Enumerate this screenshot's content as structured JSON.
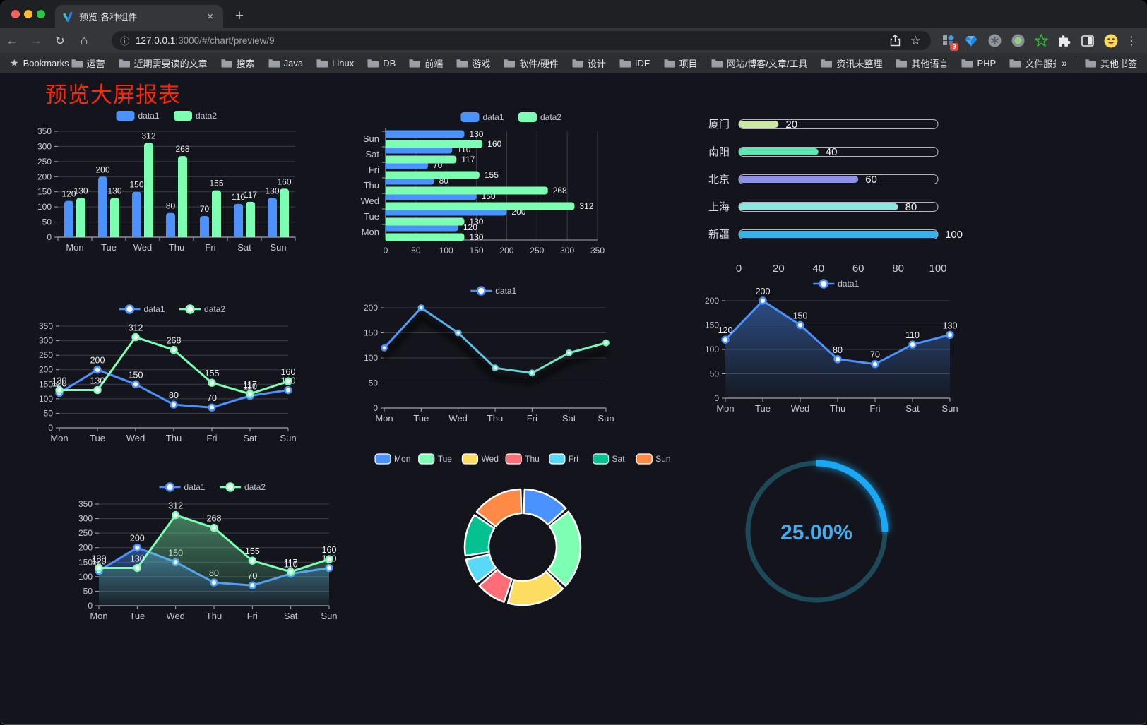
{
  "browser": {
    "tab_title": "预览-各种组件",
    "url_host": "127.0.0.1",
    "url_rest": ":3000/#/chart/preview/9",
    "bookmarks_label": "Bookmarks",
    "bookmarks": [
      "运营",
      "近期需要读的文章",
      "搜索",
      "Java",
      "Linux",
      "DB",
      "前端",
      "游戏",
      "软件/硬件",
      "设计",
      "IDE",
      "项目",
      "网站/博客/文章/工具",
      "资讯未整理",
      "其他语言",
      "PHP",
      "文件服务器"
    ],
    "overflow_chevron": "»",
    "other_bookmarks_label": "其他书签",
    "extension_badge": "9",
    "traffic_lights": [
      "#ff5f57",
      "#febc2e",
      "#28c840"
    ]
  },
  "icons": {
    "back": "←",
    "forward": "→",
    "reload": "↻",
    "home": "⌂",
    "info": "ⓘ",
    "star": "☆",
    "kebab": "⋮",
    "plus": "+",
    "close": "×"
  },
  "page": {
    "title": "预览大屏报表",
    "title_color": "#fa2a08",
    "background": "#14151c"
  },
  "theme": {
    "axis_text": "#c6c6d0",
    "grid_line": "#3c3c46",
    "axis_line": "#a6a6b4",
    "value_label": "#ecedf2",
    "legend_text": "#c3c3cd"
  },
  "chart_data": [
    {
      "type": "bar",
      "variant": "vertical",
      "legend_position": "top",
      "grid": true,
      "categories": [
        "Mon",
        "Tue",
        "Wed",
        "Thu",
        "Fri",
        "Sat",
        "Sun"
      ],
      "series": [
        {
          "name": "data1",
          "color": "#4992ff",
          "values": [
            120,
            200,
            150,
            80,
            70,
            110,
            130
          ]
        },
        {
          "name": "data2",
          "color": "#7cffb2",
          "values": [
            130,
            130,
            312,
            268,
            155,
            117,
            160
          ]
        }
      ],
      "ylim": [
        0,
        350
      ],
      "yticks": [
        0,
        50,
        100,
        150,
        200,
        250,
        300,
        350
      ],
      "value_labels": true
    },
    {
      "type": "bar",
      "variant": "horizontal",
      "legend_position": "top",
      "grid": true,
      "categories": [
        "Mon",
        "Tue",
        "Wed",
        "Thu",
        "Fri",
        "Sat",
        "Sun"
      ],
      "series": [
        {
          "name": "data1",
          "color": "#4992ff",
          "values": [
            120,
            200,
            150,
            80,
            70,
            110,
            130
          ]
        },
        {
          "name": "data2",
          "color": "#7cffb2",
          "values": [
            130,
            130,
            312,
            268,
            155,
            117,
            160
          ]
        }
      ],
      "xlim": [
        0,
        350
      ],
      "xticks": [
        0,
        50,
        100,
        150,
        200,
        250,
        300,
        350
      ],
      "value_labels": true
    },
    {
      "type": "bar",
      "variant": "progress",
      "xlim": [
        0,
        100
      ],
      "xticks": [
        0,
        20,
        40,
        60,
        80,
        100
      ],
      "items": [
        {
          "label": "厦门",
          "value": 20,
          "color": "#c9e9a2"
        },
        {
          "label": "南阳",
          "value": 40,
          "color": "#61e5b4"
        },
        {
          "label": "北京",
          "value": 60,
          "color": "#8d92e8"
        },
        {
          "label": "上海",
          "value": 80,
          "color": "#8fe6e0"
        },
        {
          "label": "新疆",
          "value": 100,
          "color": "#38b3ea"
        }
      ]
    },
    {
      "type": "line",
      "variant": "multi",
      "legend_position": "top",
      "grid": true,
      "categories": [
        "Mon",
        "Tue",
        "Wed",
        "Thu",
        "Fri",
        "Sat",
        "Sun"
      ],
      "series": [
        {
          "name": "data1",
          "color": "#4992ff",
          "values": [
            120,
            200,
            150,
            80,
            70,
            110,
            130
          ]
        },
        {
          "name": "data2",
          "color": "#7cffb2",
          "values": [
            130,
            130,
            312,
            268,
            155,
            117,
            160
          ]
        }
      ],
      "ylim": [
        0,
        350
      ],
      "yticks": [
        0,
        50,
        100,
        150,
        200,
        250,
        300,
        350
      ],
      "value_labels": true
    },
    {
      "type": "line",
      "variant": "gradient",
      "legend_position": "top",
      "grid": true,
      "categories": [
        "Mon",
        "Tue",
        "Wed",
        "Thu",
        "Fri",
        "Sat",
        "Sun"
      ],
      "series": [
        {
          "name": "data1",
          "gradient": [
            "#4992ff",
            "#7cffb2"
          ],
          "values": [
            120,
            200,
            150,
            80,
            70,
            110,
            130
          ]
        }
      ],
      "ylim": [
        0,
        200
      ],
      "yticks": [
        0,
        50,
        100,
        150,
        200
      ],
      "value_labels": false
    },
    {
      "type": "area",
      "variant": "single",
      "legend_position": "top",
      "grid": true,
      "categories": [
        "Mon",
        "Tue",
        "Wed",
        "Thu",
        "Fri",
        "Sat",
        "Sun"
      ],
      "series": [
        {
          "name": "data1",
          "color": "#4992ff",
          "values": [
            120,
            200,
            150,
            80,
            70,
            110,
            130
          ]
        }
      ],
      "ylim": [
        0,
        200
      ],
      "yticks": [
        0,
        50,
        100,
        150,
        200
      ],
      "value_labels": true
    },
    {
      "type": "area",
      "variant": "multi",
      "legend_position": "top",
      "grid": true,
      "categories": [
        "Mon",
        "Tue",
        "Wed",
        "Thu",
        "Fri",
        "Sat",
        "Sun"
      ],
      "series": [
        {
          "name": "data1",
          "color": "#4992ff",
          "values": [
            120,
            200,
            150,
            80,
            70,
            110,
            130
          ]
        },
        {
          "name": "data2",
          "color": "#7cffb2",
          "values": [
            130,
            130,
            312,
            268,
            155,
            117,
            160
          ]
        }
      ],
      "ylim": [
        0,
        350
      ],
      "yticks": [
        0,
        50,
        100,
        150,
        200,
        250,
        300,
        350
      ],
      "value_labels": true
    },
    {
      "type": "pie",
      "variant": "donut",
      "legend_position": "top",
      "items": [
        {
          "label": "Mon",
          "value": 120,
          "color": "#4992ff"
        },
        {
          "label": "Tue",
          "value": 200,
          "color": "#7cffb2"
        },
        {
          "label": "Wed",
          "value": 150,
          "color": "#fddd60"
        },
        {
          "label": "Thu",
          "value": 80,
          "color": "#ff6e76"
        },
        {
          "label": "Fri",
          "value": 70,
          "color": "#58d9f9"
        },
        {
          "label": "Sat",
          "value": 110,
          "color": "#05c091"
        },
        {
          "label": "Sun",
          "value": 130,
          "color": "#ff8a45"
        }
      ]
    },
    {
      "type": "pie",
      "variant": "gauge",
      "value": 25,
      "max": 100,
      "label": "25.00%",
      "color": "#1aa8f4",
      "track_color": "#1d4a58",
      "text_color": "#45abee"
    }
  ]
}
